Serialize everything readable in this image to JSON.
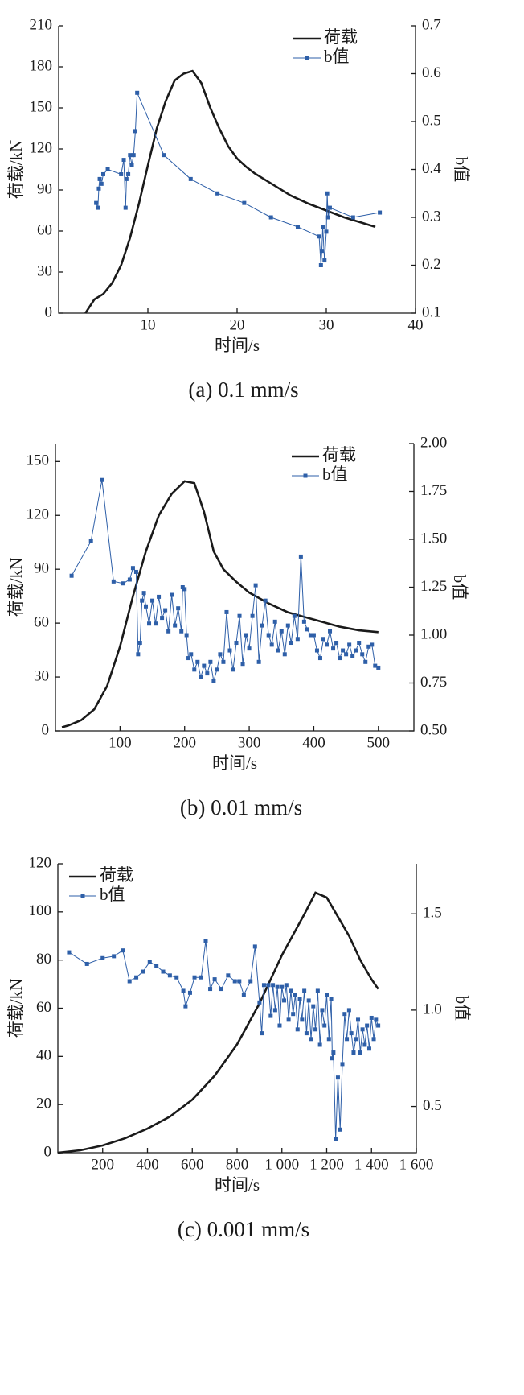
{
  "chart_data": [
    {
      "type": "line",
      "title": "(a) 0.1 mm/s",
      "x_label": "时间/s",
      "y_label": "荷载/kN",
      "y2_label": "b值",
      "xlim": [
        0,
        40
      ],
      "xticks": [
        10,
        20,
        30,
        40
      ],
      "ylim": [
        0,
        210
      ],
      "yticks": [
        0,
        30,
        60,
        90,
        120,
        150,
        180,
        210
      ],
      "y2lim": [
        0.1,
        0.7
      ],
      "y2ticks": [
        0.1,
        0.2,
        0.3,
        0.4,
        0.5,
        0.6,
        0.7
      ],
      "legend": "upper right",
      "series": [
        {
          "name": "荷载",
          "color": "#1a1a1a",
          "x": [
            3,
            4,
            5,
            6,
            7,
            8,
            9,
            10,
            11,
            12,
            13,
            14,
            15,
            16,
            17,
            18,
            19,
            20,
            21,
            22,
            24,
            26,
            28,
            30,
            32,
            34,
            35.5
          ],
          "values": [
            0,
            10,
            14,
            22,
            35,
            55,
            80,
            108,
            135,
            155,
            170,
            175,
            177,
            168,
            150,
            135,
            122,
            113,
            107,
            102,
            94,
            86,
            80,
            75,
            70,
            66,
            63
          ]
        },
        {
          "name": "b值",
          "color": "#2e5fa8",
          "axis": "y2",
          "marker": "square",
          "x": [
            4.2,
            4.4,
            4.5,
            4.6,
            4.8,
            5,
            5.5,
            7,
            7.3,
            7.5,
            7.6,
            7.8,
            8,
            8.2,
            8.4,
            8.6,
            8.8,
            11.8,
            14.8,
            17.8,
            20.8,
            23.8,
            26.8,
            29.2,
            29.4,
            29.5,
            29.6,
            29.8,
            30,
            30.1,
            30.2,
            30.4,
            33,
            36
          ],
          "values": [
            0.33,
            0.32,
            0.36,
            0.38,
            0.37,
            0.39,
            0.4,
            0.39,
            0.42,
            0.32,
            0.38,
            0.39,
            0.43,
            0.41,
            0.43,
            0.48,
            0.56,
            0.43,
            0.38,
            0.35,
            0.33,
            0.3,
            0.28,
            0.26,
            0.2,
            0.23,
            0.28,
            0.21,
            0.27,
            0.35,
            0.3,
            0.32,
            0.3,
            0.31
          ]
        }
      ]
    },
    {
      "type": "line",
      "title": "(b) 0.01 mm/s",
      "x_label": "时间/s",
      "y_label": "荷载/kN",
      "y2_label": "b值",
      "xlim": [
        0,
        555
      ],
      "xticks": [
        100,
        200,
        300,
        400,
        500
      ],
      "ylim": [
        0,
        160
      ],
      "yticks": [
        0,
        30,
        60,
        90,
        120,
        150
      ],
      "y2lim": [
        0.5,
        2.0
      ],
      "y2ticks": [
        {
          "value": 0.5,
          "label": "0.50"
        },
        {
          "value": 0.75,
          "label": "0.75"
        },
        {
          "value": 1.0,
          "label": "1.00"
        },
        {
          "value": 1.25,
          "label": "1.25"
        },
        {
          "value": 1.5,
          "label": "1.50"
        },
        {
          "value": 1.75,
          "label": "1.75"
        },
        {
          "value": 2.0,
          "label": "2.00"
        }
      ],
      "legend": "upper right",
      "series": [
        {
          "name": "荷载",
          "color": "#1a1a1a",
          "x": [
            10,
            20,
            40,
            60,
            80,
            100,
            120,
            140,
            160,
            180,
            200,
            215,
            230,
            245,
            260,
            280,
            300,
            330,
            360,
            400,
            440,
            470,
            500
          ],
          "values": [
            2,
            3,
            6,
            12,
            25,
            47,
            75,
            100,
            120,
            132,
            139,
            138,
            122,
            100,
            90,
            83,
            77,
            71,
            66,
            62,
            58,
            56,
            55
          ]
        },
        {
          "name": "b值",
          "color": "#2e5fa8",
          "axis": "y2",
          "marker": "square",
          "x": [
            25,
            55,
            72,
            90,
            105,
            115,
            120,
            125,
            128,
            131,
            134,
            137,
            140,
            145,
            150,
            155,
            160,
            165,
            170,
            175,
            180,
            185,
            190,
            195,
            197,
            200,
            203,
            206,
            210,
            215,
            220,
            225,
            230,
            235,
            240,
            245,
            250,
            255,
            260,
            265,
            270,
            275,
            280,
            285,
            290,
            295,
            300,
            305,
            310,
            315,
            320,
            325,
            330,
            335,
            340,
            345,
            350,
            355,
            360,
            365,
            370,
            375,
            380,
            385,
            390,
            395,
            400,
            405,
            410,
            415,
            420,
            425,
            430,
            435,
            440,
            445,
            450,
            455,
            460,
            465,
            470,
            475,
            480,
            485,
            490,
            495,
            500
          ],
          "values": [
            1.31,
            1.49,
            1.81,
            1.28,
            1.27,
            1.29,
            1.35,
            1.33,
            0.9,
            0.96,
            1.18,
            1.22,
            1.15,
            1.06,
            1.18,
            1.06,
            1.2,
            1.09,
            1.13,
            1.02,
            1.21,
            1.05,
            1.14,
            1.02,
            1.25,
            1.24,
            1.0,
            0.88,
            0.9,
            0.82,
            0.86,
            0.78,
            0.84,
            0.8,
            0.86,
            0.76,
            0.82,
            0.9,
            0.86,
            1.12,
            0.92,
            0.82,
            0.96,
            1.1,
            0.85,
            1.0,
            0.93,
            1.1,
            1.26,
            0.86,
            1.05,
            1.18,
            1.0,
            0.95,
            1.07,
            0.92,
            1.02,
            0.9,
            1.05,
            0.96,
            1.1,
            0.98,
            1.41,
            1.07,
            1.03,
            1.0,
            1.0,
            0.92,
            0.88,
            0.98,
            0.95,
            1.02,
            0.93,
            0.96,
            0.88,
            0.92,
            0.9,
            0.95,
            0.89,
            0.92,
            0.96,
            0.9,
            0.86,
            0.94,
            0.95,
            0.84,
            0.83
          ]
        }
      ]
    },
    {
      "type": "line",
      "title": "(c) 0.001 mm/s",
      "x_label": "时间/s",
      "y_label": "荷载/kN",
      "y2_label": "b值",
      "xlim": [
        0,
        1600
      ],
      "xticks": [
        200,
        400,
        600,
        800,
        {
          "value": 1000,
          "label": "1 000"
        },
        {
          "value": 1200,
          "label": "1 200"
        },
        {
          "value": 1400,
          "label": "1 400"
        },
        {
          "value": 1600,
          "label": "1 600"
        }
      ],
      "ylim": [
        0,
        120
      ],
      "yticks": [
        0,
        20,
        40,
        60,
        80,
        100,
        120
      ],
      "y2lim": [
        0.26,
        1.76
      ],
      "y2ticks": [
        0.5,
        {
          "value": 1.0,
          "label": "1.0"
        },
        1.5
      ],
      "legend": "upper left",
      "series": [
        {
          "name": "荷载",
          "color": "#1a1a1a",
          "x": [
            0,
            100,
            200,
            300,
            400,
            500,
            600,
            700,
            800,
            900,
            1000,
            1100,
            1150,
            1200,
            1250,
            1300,
            1350,
            1400,
            1430
          ],
          "values": [
            0,
            1,
            3,
            6,
            10,
            15,
            22,
            32,
            45,
            62,
            82,
            99,
            108,
            106,
            98,
            90,
            80,
            72,
            68
          ]
        },
        {
          "name": "b值",
          "color": "#2e5fa8",
          "axis": "y2",
          "marker": "square",
          "x": [
            50,
            130,
            200,
            250,
            290,
            320,
            350,
            380,
            410,
            440,
            470,
            500,
            530,
            560,
            570,
            590,
            610,
            640,
            660,
            680,
            700,
            730,
            760,
            790,
            810,
            830,
            860,
            880,
            900,
            910,
            920,
            940,
            950,
            960,
            970,
            980,
            990,
            1000,
            1010,
            1020,
            1030,
            1040,
            1050,
            1060,
            1070,
            1080,
            1090,
            1100,
            1110,
            1120,
            1130,
            1140,
            1150,
            1160,
            1170,
            1180,
            1190,
            1200,
            1210,
            1220,
            1225,
            1230,
            1240,
            1250,
            1260,
            1270,
            1280,
            1290,
            1300,
            1310,
            1320,
            1330,
            1340,
            1350,
            1360,
            1370,
            1380,
            1390,
            1400,
            1410,
            1420,
            1430
          ],
          "values": [
            1.3,
            1.24,
            1.27,
            1.28,
            1.31,
            1.15,
            1.17,
            1.2,
            1.25,
            1.23,
            1.2,
            1.18,
            1.17,
            1.1,
            1.02,
            1.09,
            1.17,
            1.17,
            1.36,
            1.11,
            1.16,
            1.11,
            1.18,
            1.15,
            1.15,
            1.08,
            1.15,
            1.33,
            1.04,
            0.88,
            1.13,
            1.13,
            0.97,
            1.13,
            1.0,
            1.12,
            0.92,
            1.12,
            1.05,
            1.13,
            0.95,
            1.1,
            0.98,
            1.08,
            0.9,
            1.06,
            0.95,
            1.1,
            0.88,
            1.05,
            0.85,
            1.02,
            0.9,
            1.1,
            0.82,
            1.0,
            0.92,
            1.08,
            0.85,
            1.06,
            0.75,
            0.78,
            0.33,
            0.65,
            0.38,
            0.72,
            0.98,
            0.85,
            1.0,
            0.88,
            0.78,
            0.85,
            0.95,
            0.78,
            0.9,
            0.82,
            0.92,
            0.8,
            0.96,
            0.85,
            0.95,
            0.92
          ]
        }
      ]
    }
  ]
}
